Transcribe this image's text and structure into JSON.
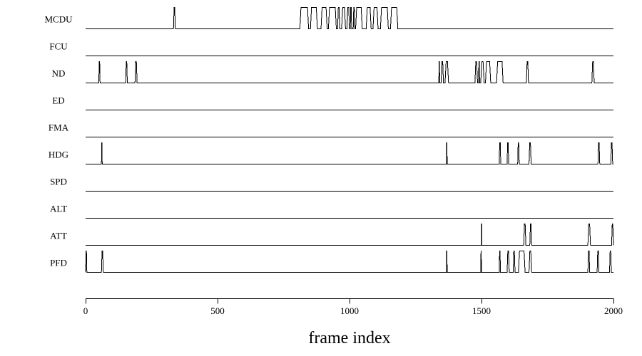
{
  "chart_data": {
    "type": "line",
    "title": "",
    "xlabel": "frame index",
    "ylabel": "",
    "xlim": [
      0,
      2000
    ],
    "x_ticks": [
      0,
      500,
      1000,
      1500,
      2000
    ],
    "grid": false,
    "legend": "none",
    "series": [
      {
        "name": "MCDU",
        "intervals": [
          [
            333,
            340
          ],
          [
            812,
            845
          ],
          [
            852,
            878
          ],
          [
            892,
            915
          ],
          [
            920,
            950
          ],
          [
            955,
            963
          ],
          [
            970,
            985
          ],
          [
            990,
            1000
          ],
          [
            1003,
            1008
          ],
          [
            1014,
            1020
          ],
          [
            1023,
            1048
          ],
          [
            1063,
            1082
          ],
          [
            1089,
            1108
          ],
          [
            1117,
            1147
          ],
          [
            1155,
            1183
          ]
        ]
      },
      {
        "name": "FCU",
        "intervals": []
      },
      {
        "name": "ND",
        "intervals": [
          [
            50,
            55
          ],
          [
            152,
            158
          ],
          [
            187,
            195
          ],
          [
            1338,
            1342
          ],
          [
            1347,
            1356
          ],
          [
            1362,
            1375
          ],
          [
            1475,
            1485
          ],
          [
            1489,
            1493
          ],
          [
            1497,
            1510
          ],
          [
            1515,
            1535
          ],
          [
            1557,
            1582
          ],
          [
            1670,
            1678
          ],
          [
            1918,
            1927
          ]
        ]
      },
      {
        "name": "ED",
        "intervals": []
      },
      {
        "name": "FMA",
        "intervals": []
      },
      {
        "name": "HDG",
        "intervals": [
          [
            60,
            63
          ],
          [
            1367,
            1370
          ],
          [
            1567,
            1573
          ],
          [
            1597,
            1603
          ],
          [
            1637,
            1643
          ],
          [
            1680,
            1688
          ],
          [
            1941,
            1948
          ],
          [
            1990,
            1997
          ]
        ]
      },
      {
        "name": "SPD",
        "intervals": []
      },
      {
        "name": "ALT",
        "intervals": []
      },
      {
        "name": "ATT",
        "intervals": [
          [
            1500,
            1502
          ],
          [
            1660,
            1668
          ],
          [
            1683,
            1690
          ],
          [
            1903,
            1913
          ],
          [
            1993,
            2000
          ]
        ]
      },
      {
        "name": "PFD",
        "intervals": [
          [
            0,
            5
          ],
          [
            60,
            67
          ],
          [
            1367,
            1370
          ],
          [
            1497,
            1500
          ],
          [
            1567,
            1572
          ],
          [
            1597,
            1605
          ],
          [
            1620,
            1627
          ],
          [
            1640,
            1665
          ],
          [
            1680,
            1690
          ],
          [
            1903,
            1910
          ],
          [
            1938,
            1945
          ],
          [
            1985,
            1992
          ]
        ]
      }
    ]
  }
}
